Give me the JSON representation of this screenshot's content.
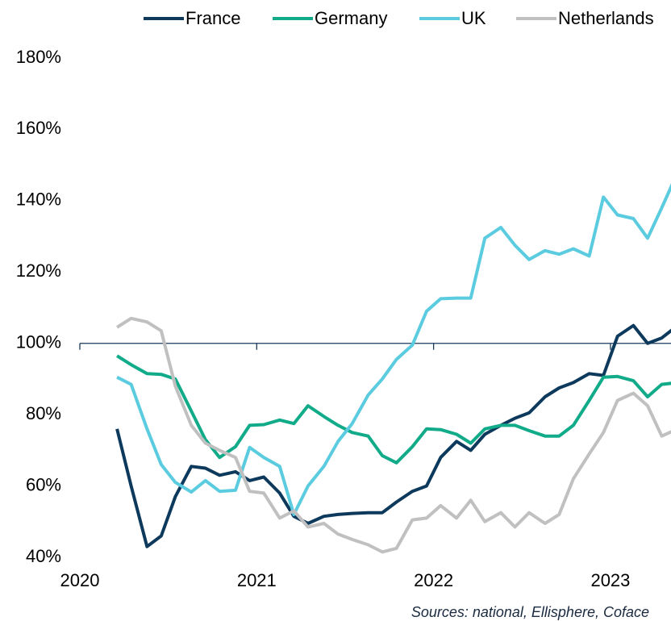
{
  "chart_data": {
    "type": "line",
    "source": "Sources: national, Ellisphere, Coface",
    "x": [
      2020.21,
      2020.29,
      2020.38,
      2020.46,
      2020.54,
      2020.63,
      2020.71,
      2020.79,
      2020.88,
      2020.96,
      2021.04,
      2021.13,
      2021.21,
      2021.29,
      2021.38,
      2021.46,
      2021.54,
      2021.63,
      2021.71,
      2021.79,
      2021.88,
      2021.96,
      2022.04,
      2022.13,
      2022.21,
      2022.29,
      2022.38,
      2022.46,
      2022.54,
      2022.63,
      2022.71,
      2022.79,
      2022.88,
      2022.96,
      2023.04,
      2023.13,
      2023.21,
      2023.29,
      2023.38
    ],
    "series": [
      {
        "name": "France",
        "color": "#0d3a5c",
        "values": [
          76,
          60,
          43,
          46,
          57,
          65.5,
          65,
          63,
          64,
          61.5,
          62.5,
          58,
          51.5,
          49.5,
          51.5,
          52,
          52.3,
          52.5,
          52.5,
          55.5,
          58.5,
          60,
          68,
          72.5,
          70,
          74.5,
          77,
          79,
          80.5,
          85,
          87.5,
          89,
          91.5,
          91,
          102,
          105,
          100,
          101.5,
          105
        ]
      },
      {
        "name": "Germany",
        "color": "#12ab8a",
        "values": [
          96.5,
          94,
          91.5,
          91.3,
          90,
          81,
          73,
          68,
          71,
          77,
          77.2,
          78.5,
          77.5,
          82.5,
          79.5,
          77,
          75,
          74,
          68.5,
          66.5,
          71,
          76,
          75.8,
          74.5,
          72,
          76,
          77,
          77,
          75.5,
          74,
          74,
          77,
          84,
          90.5,
          90.7,
          89.5,
          85,
          88.5,
          89
        ]
      },
      {
        "name": "UK",
        "color": "#5bcbe0",
        "values": [
          90.5,
          88.5,
          76,
          66,
          61,
          58.3,
          61.5,
          58.5,
          58.8,
          70.8,
          68,
          65.5,
          52,
          60,
          65.5,
          72.5,
          77.5,
          85.5,
          90,
          95.5,
          99.5,
          109,
          112.5,
          112.7,
          112.7,
          129.5,
          132.5,
          127.5,
          123.5,
          126,
          125,
          126.5,
          124.5,
          141,
          136,
          135,
          129.5,
          138,
          148
        ]
      },
      {
        "name": "Netherlands",
        "color": "#c0c0c0",
        "values": [
          104.5,
          107,
          106,
          103.5,
          88,
          77,
          72,
          70,
          68,
          58.5,
          58,
          51,
          53,
          48.5,
          49.5,
          46.5,
          45,
          43.5,
          41.5,
          42.5,
          50.5,
          51,
          54.5,
          51,
          56,
          50,
          52.5,
          48.5,
          52.5,
          49.5,
          52,
          62,
          69,
          75,
          84,
          86,
          82.5,
          74,
          76
        ]
      }
    ],
    "xlim": [
      2020,
      2023.34
    ],
    "xticks": [
      2020,
      2021,
      2022,
      2023
    ],
    "ylim": [
      40,
      180
    ],
    "yticks": [
      {
        "value": 40,
        "label": "40%"
      },
      {
        "value": 60,
        "label": "60%"
      },
      {
        "value": 80,
        "label": "80%"
      },
      {
        "value": 100,
        "label": "100%"
      },
      {
        "value": 120,
        "label": "120%"
      },
      {
        "value": 140,
        "label": "140%"
      },
      {
        "value": 160,
        "label": "160%"
      },
      {
        "value": 180,
        "label": "180%"
      }
    ],
    "x_axis_at": 100,
    "grid": false,
    "legend": "top"
  }
}
